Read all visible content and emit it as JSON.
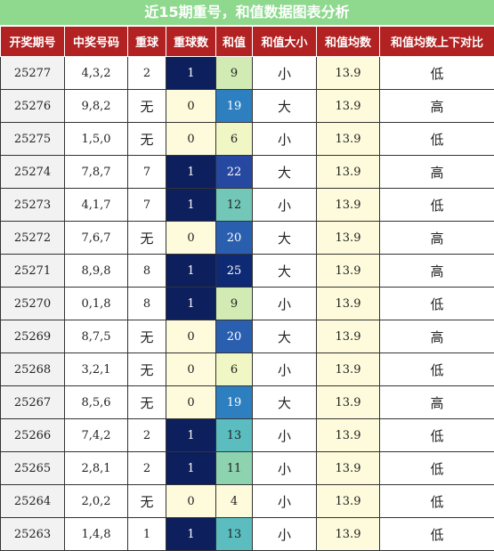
{
  "title": "近15期重号，和值数据图表分析",
  "headers": [
    "开奖期号",
    "中奖号码",
    "重球",
    "重球数",
    "和值",
    "和值大小",
    "和值均数",
    "和值均数上下对比"
  ],
  "colors": {
    "title_bg": "#8fd98f",
    "header_bg": "#b22222",
    "issue_bg": "#f2f2f2",
    "pale_bg": "#fdfbdc",
    "repeat_1": "#0d1f5c",
    "sum_colors": {
      "4": "#fdfbdc",
      "6": "#f0f7c4",
      "9": "#d2ebb4",
      "11": "#8dd3b0",
      "12": "#72c7b8",
      "13": "#5bbdc0",
      "19": "#2d7fc0",
      "20": "#2a5fb0",
      "22": "#2748a0",
      "25": "#0f2a74"
    }
  },
  "rows": [
    {
      "issue": "25277",
      "numbers": "4,3,2",
      "repeat": "2",
      "repeat_count": "1",
      "sum": "9",
      "size": "小",
      "avg": "13.9",
      "compare": "低"
    },
    {
      "issue": "25276",
      "numbers": "9,8,2",
      "repeat": "无",
      "repeat_count": "0",
      "sum": "19",
      "size": "大",
      "avg": "13.9",
      "compare": "高"
    },
    {
      "issue": "25275",
      "numbers": "1,5,0",
      "repeat": "无",
      "repeat_count": "0",
      "sum": "6",
      "size": "小",
      "avg": "13.9",
      "compare": "低"
    },
    {
      "issue": "25274",
      "numbers": "7,8,7",
      "repeat": "7",
      "repeat_count": "1",
      "sum": "22",
      "size": "大",
      "avg": "13.9",
      "compare": "高"
    },
    {
      "issue": "25273",
      "numbers": "4,1,7",
      "repeat": "7",
      "repeat_count": "1",
      "sum": "12",
      "size": "小",
      "avg": "13.9",
      "compare": "低"
    },
    {
      "issue": "25272",
      "numbers": "7,6,7",
      "repeat": "无",
      "repeat_count": "0",
      "sum": "20",
      "size": "大",
      "avg": "13.9",
      "compare": "高"
    },
    {
      "issue": "25271",
      "numbers": "8,9,8",
      "repeat": "8",
      "repeat_count": "1",
      "sum": "25",
      "size": "大",
      "avg": "13.9",
      "compare": "高"
    },
    {
      "issue": "25270",
      "numbers": "0,1,8",
      "repeat": "8",
      "repeat_count": "1",
      "sum": "9",
      "size": "小",
      "avg": "13.9",
      "compare": "低"
    },
    {
      "issue": "25269",
      "numbers": "8,7,5",
      "repeat": "无",
      "repeat_count": "0",
      "sum": "20",
      "size": "大",
      "avg": "13.9",
      "compare": "高"
    },
    {
      "issue": "25268",
      "numbers": "3,2,1",
      "repeat": "无",
      "repeat_count": "0",
      "sum": "6",
      "size": "小",
      "avg": "13.9",
      "compare": "低"
    },
    {
      "issue": "25267",
      "numbers": "8,5,6",
      "repeat": "无",
      "repeat_count": "0",
      "sum": "19",
      "size": "大",
      "avg": "13.9",
      "compare": "高"
    },
    {
      "issue": "25266",
      "numbers": "7,4,2",
      "repeat": "2",
      "repeat_count": "1",
      "sum": "13",
      "size": "小",
      "avg": "13.9",
      "compare": "低"
    },
    {
      "issue": "25265",
      "numbers": "2,8,1",
      "repeat": "2",
      "repeat_count": "1",
      "sum": "11",
      "size": "小",
      "avg": "13.9",
      "compare": "低"
    },
    {
      "issue": "25264",
      "numbers": "2,0,2",
      "repeat": "无",
      "repeat_count": "0",
      "sum": "4",
      "size": "小",
      "avg": "13.9",
      "compare": "低"
    },
    {
      "issue": "25263",
      "numbers": "1,4,8",
      "repeat": "1",
      "repeat_count": "1",
      "sum": "13",
      "size": "小",
      "avg": "13.9",
      "compare": "低"
    }
  ]
}
